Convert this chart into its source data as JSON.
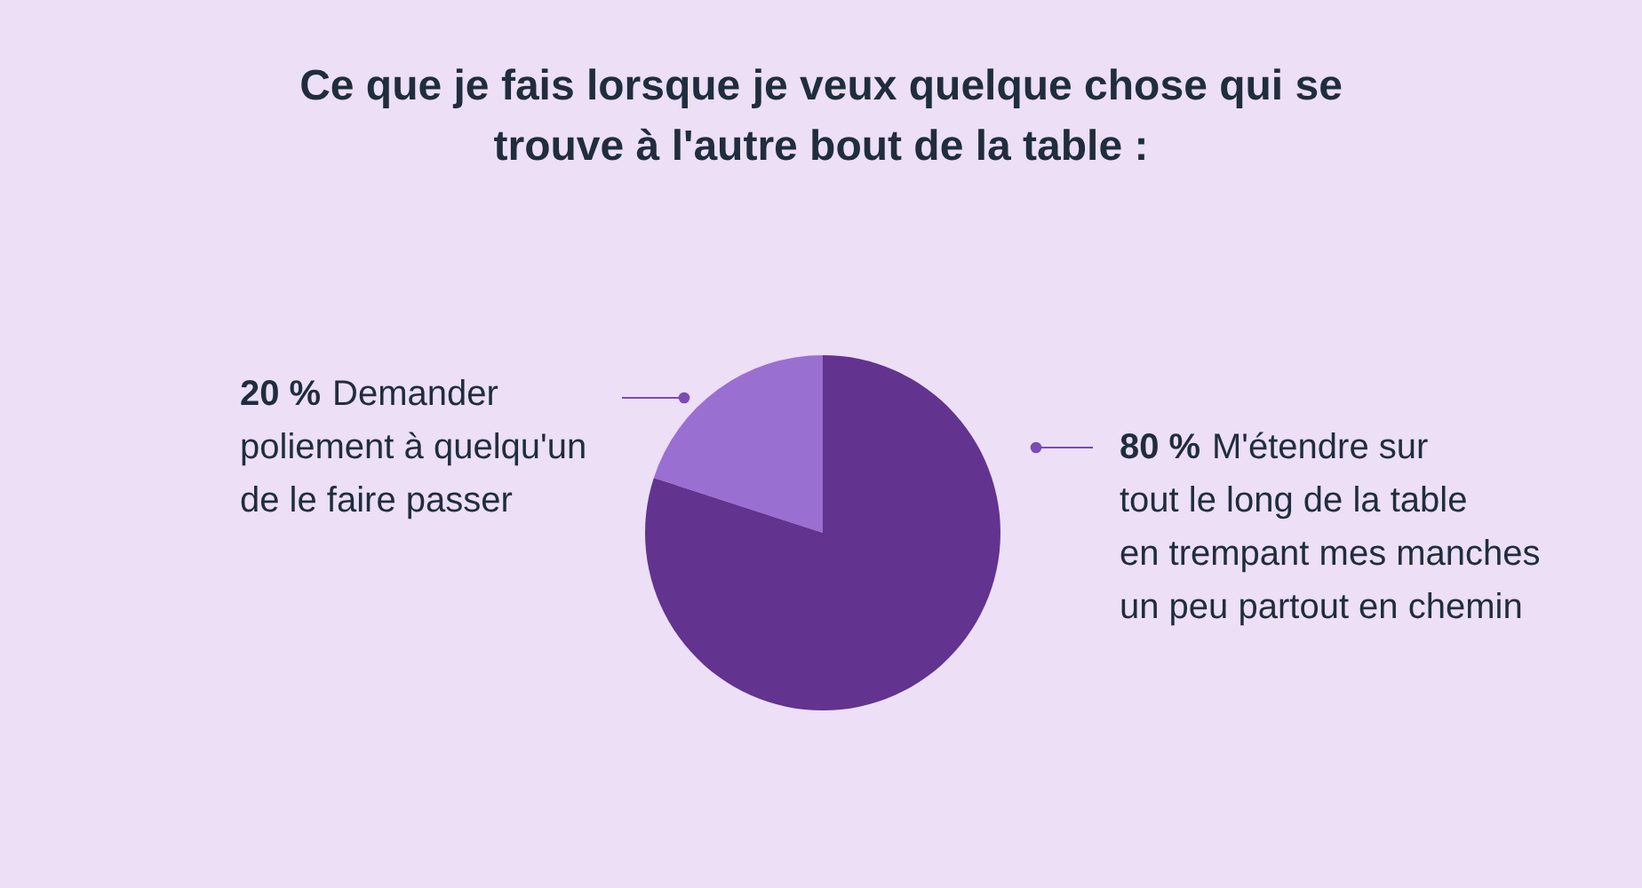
{
  "chart_data": {
    "type": "pie",
    "title": "Ce que je fais lorsque je veux quelque chose qui se trouve à l'autre bout de la table :",
    "categories": [
      "Demander poliement à quelqu'un de le faire passer",
      "M'étendre sur tout le long de la table en trempant mes manches un peu partout en chemin"
    ],
    "values": [
      20,
      80
    ],
    "colors": [
      "#9a6fd2",
      "#62338f"
    ],
    "value_labels": [
      "20 %",
      "80 %"
    ]
  }
}
